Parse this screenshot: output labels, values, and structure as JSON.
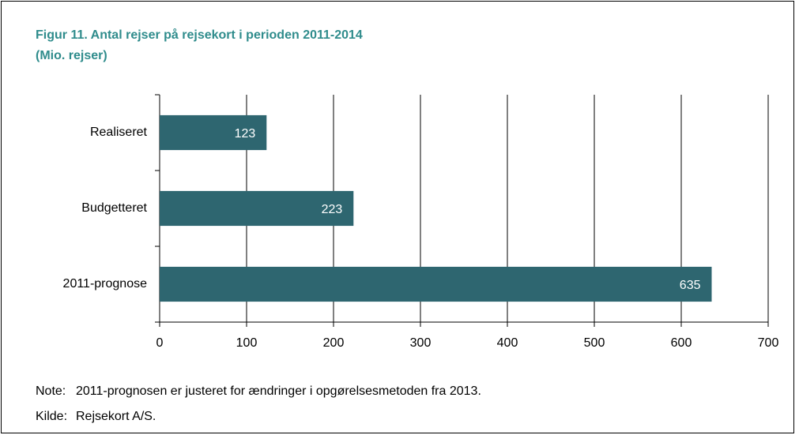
{
  "chart_data": {
    "type": "bar",
    "orientation": "horizontal",
    "title": "Figur 11. Antal rejser på rejsekort i perioden 2011-2014",
    "subtitle": "(Mio. rejser)",
    "categories": [
      "Realiseret",
      "Budgetteret",
      "2011-prognose"
    ],
    "values": [
      123,
      223,
      635
    ],
    "color": "#2e6670",
    "xlim": [
      0,
      700
    ],
    "xticks": [
      0,
      100,
      200,
      300,
      400,
      500,
      600,
      700
    ],
    "grid": true,
    "notes": [
      {
        "label": "Note:",
        "text": "2011-prognosen er justeret for ændringer i opgørelsesmetoden fra 2013."
      },
      {
        "label": "Kilde:",
        "text": "Rejsekort A/S."
      }
    ]
  }
}
